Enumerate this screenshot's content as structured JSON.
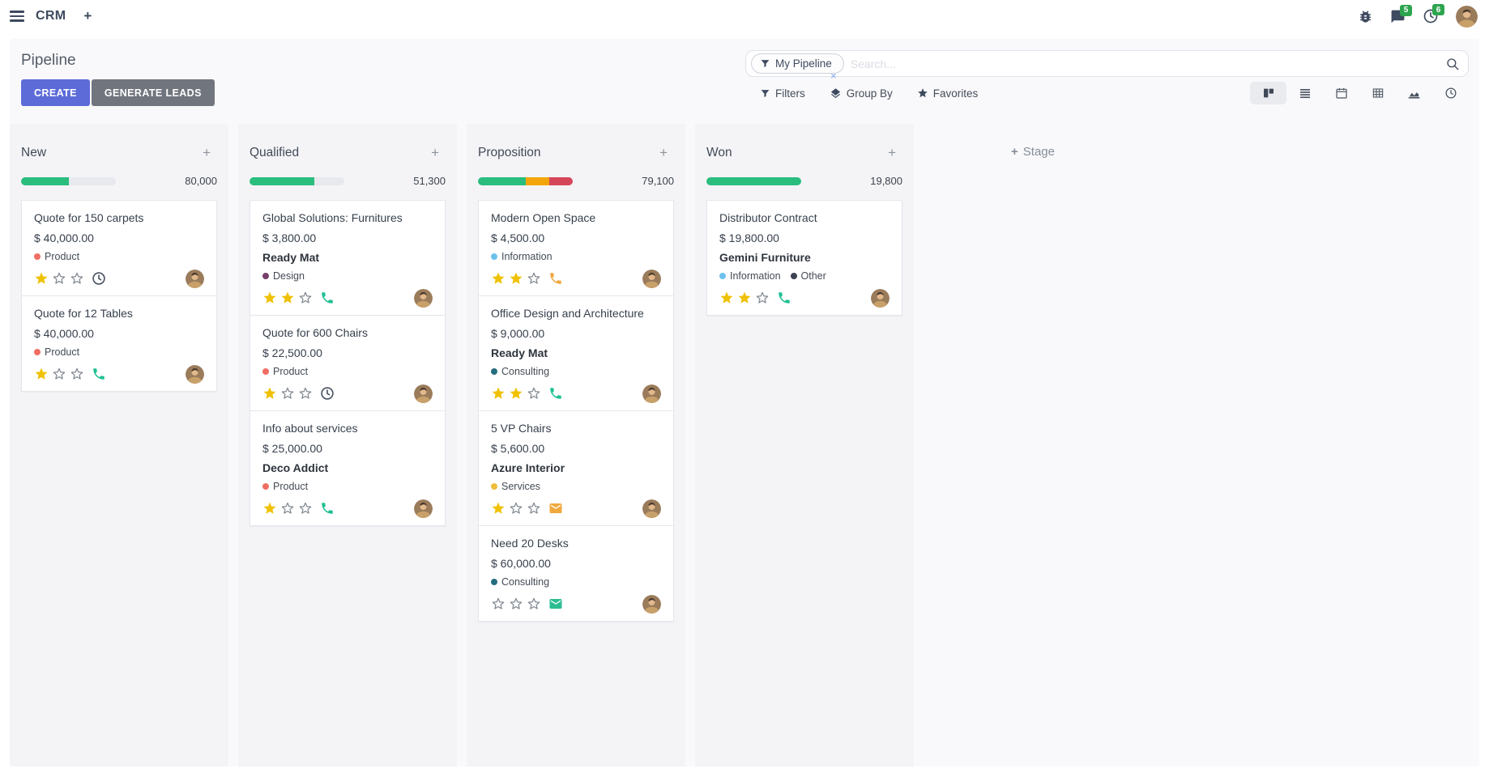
{
  "icons": {
    "plus": "+",
    "close": "×"
  },
  "colors": {
    "accent": "#5d6bd8",
    "gray_btn": "#71757d",
    "badge_green": "#2da44e",
    "star_gold": "#efc100",
    "progress_green": "#2abd7e",
    "progress_orange": "#f3a60c",
    "progress_red": "#d5465a"
  },
  "navbar": {
    "app_name": "CRM",
    "messages_badge": "5",
    "activities_badge": "6"
  },
  "control_panel": {
    "title": "Pipeline",
    "buttons": {
      "create": "CREATE",
      "generate_leads": "GENERATE LEADS"
    },
    "search": {
      "facet_label": "My Pipeline",
      "placeholder": "Search..."
    },
    "menus": {
      "filters": "Filters",
      "group_by": "Group By",
      "favorites": "Favorites"
    }
  },
  "kanban": {
    "add_stage_label": "Stage",
    "columns": [
      {
        "name": "New",
        "total": "80,000",
        "progress": [
          {
            "color": "#2abd7e",
            "pct": 50
          }
        ],
        "cards": [
          {
            "title": "Quote for 150 carpets",
            "amount": "$ 40,000.00",
            "partner": "",
            "tags": [
              {
                "label": "Product",
                "color": "#ef6e64"
              }
            ],
            "stars": 1,
            "activity": {
              "type": "clock",
              "color": "#4b5563"
            }
          },
          {
            "title": "Quote for 12 Tables",
            "amount": "$ 40,000.00",
            "partner": "",
            "tags": [
              {
                "label": "Product",
                "color": "#ef6e64"
              }
            ],
            "stars": 1,
            "activity": {
              "type": "phone",
              "color": "#1fbf92"
            }
          }
        ]
      },
      {
        "name": "Qualified",
        "total": "51,300",
        "progress": [
          {
            "color": "#2abd7e",
            "pct": 68
          }
        ],
        "cards": [
          {
            "title": "Global Solutions: Furnitures",
            "amount": "$ 3,800.00",
            "partner": "Ready Mat",
            "tags": [
              {
                "label": "Design",
                "color": "#75406b"
              }
            ],
            "stars": 2,
            "activity": {
              "type": "phone",
              "color": "#1fbf92"
            }
          },
          {
            "title": "Quote for 600 Chairs",
            "amount": "$ 22,500.00",
            "partner": "",
            "tags": [
              {
                "label": "Product",
                "color": "#ef6e64"
              }
            ],
            "stars": 1,
            "activity": {
              "type": "clock",
              "color": "#4b5563"
            }
          },
          {
            "title": "Info about services",
            "amount": "$ 25,000.00",
            "partner": "Deco Addict",
            "tags": [
              {
                "label": "Product",
                "color": "#ef6e64"
              }
            ],
            "stars": 1,
            "activity": {
              "type": "phone",
              "color": "#1fbf92"
            }
          }
        ]
      },
      {
        "name": "Proposition",
        "total": "79,100",
        "progress": [
          {
            "color": "#2abd7e",
            "pct": 50
          },
          {
            "color": "#f3a60c",
            "pct": 25
          },
          {
            "color": "#d5465a",
            "pct": 25
          }
        ],
        "cards": [
          {
            "title": "Modern Open Space",
            "amount": "$ 4,500.00",
            "partner": "",
            "tags": [
              {
                "label": "Information",
                "color": "#6ec1ec"
              }
            ],
            "stars": 2,
            "activity": {
              "type": "phone",
              "color": "#f0a63d"
            }
          },
          {
            "title": "Office Design and Architecture",
            "amount": "$ 9,000.00",
            "partner": "Ready Mat",
            "tags": [
              {
                "label": "Consulting",
                "color": "#256d7f"
              }
            ],
            "stars": 2,
            "activity": {
              "type": "phone",
              "color": "#1fbf92"
            }
          },
          {
            "title": "5 VP Chairs",
            "amount": "$ 5,600.00",
            "partner": "Azure Interior",
            "tags": [
              {
                "label": "Services",
                "color": "#eebd3c"
              }
            ],
            "stars": 1,
            "activity": {
              "type": "envelope",
              "color": "#efa93e"
            }
          },
          {
            "title": "Need 20 Desks",
            "amount": "$ 60,000.00",
            "partner": "",
            "tags": [
              {
                "label": "Consulting",
                "color": "#256d7f"
              }
            ],
            "stars": 0,
            "activity": {
              "type": "envelope",
              "color": "#2ebd92"
            }
          }
        ]
      },
      {
        "name": "Won",
        "total": "19,800",
        "progress": [
          {
            "color": "#2abd7e",
            "pct": 100
          }
        ],
        "cards": [
          {
            "title": "Distributor Contract",
            "amount": "$ 19,800.00",
            "partner": "Gemini Furniture",
            "tags": [
              {
                "label": "Information",
                "color": "#6ec1ec"
              },
              {
                "label": "Other",
                "color": "#3b4254"
              }
            ],
            "stars": 2,
            "activity": {
              "type": "phone",
              "color": "#1fbf92"
            }
          }
        ]
      }
    ]
  }
}
